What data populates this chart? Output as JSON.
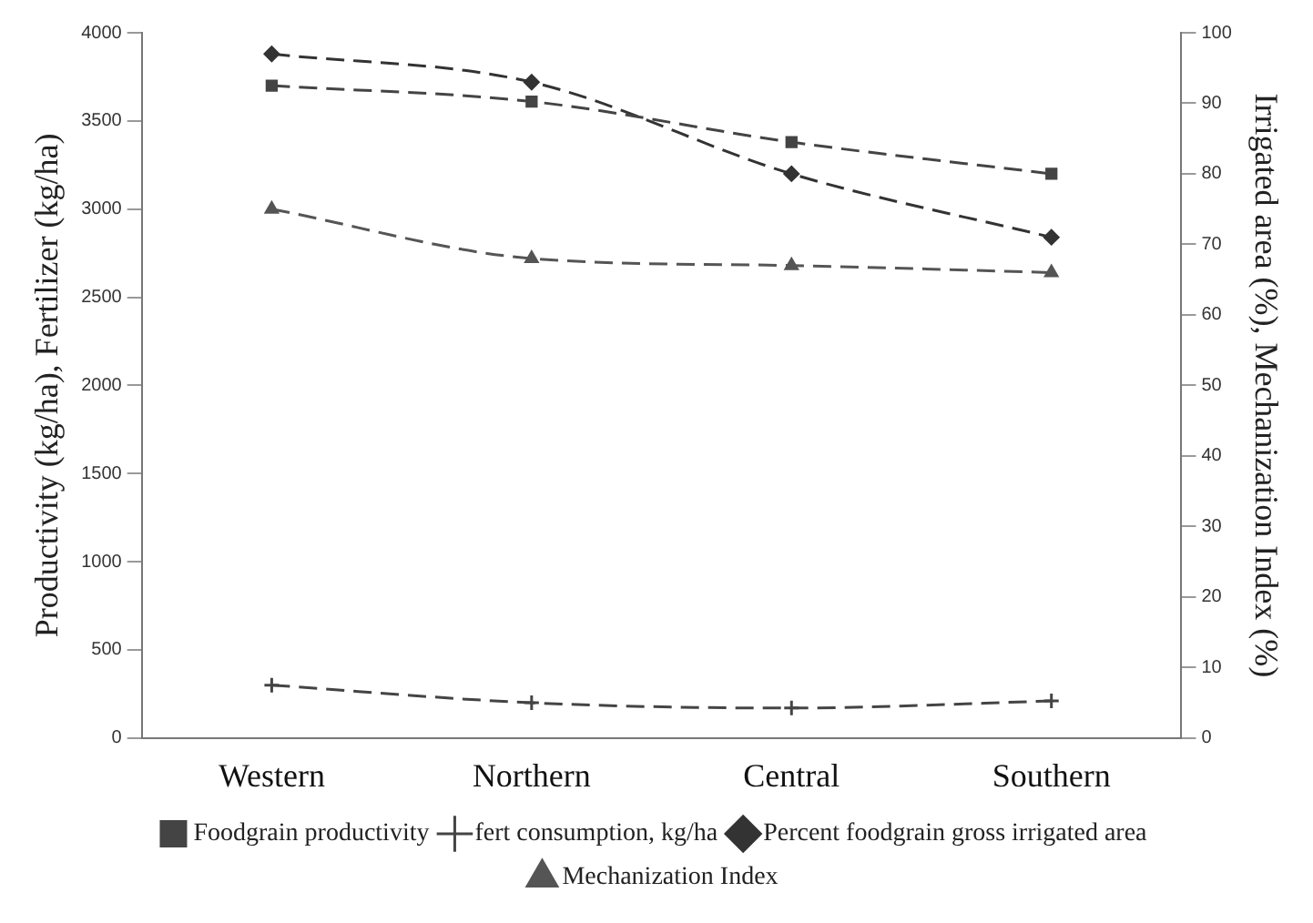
{
  "chart_data": {
    "type": "line",
    "categories": [
      "Western",
      "Northern",
      "Central",
      "Southern"
    ],
    "ylabel": "Productivity (kg/ha), Fertilizer (kg/ha)",
    "y2label": "Irrigated area (%), Mechanization Index (%)",
    "ylim": [
      0,
      4000
    ],
    "yticks": [
      0,
      500,
      1000,
      1500,
      2000,
      2500,
      3000,
      3500,
      4000
    ],
    "y2lim": [
      0,
      100
    ],
    "y2ticks": [
      0,
      10,
      20,
      30,
      40,
      50,
      60,
      70,
      80,
      90,
      100
    ],
    "grid": false,
    "legend": "bottom",
    "line_style": "dashed",
    "series": [
      {
        "name": "Foodgrain productivity",
        "color": "#444444",
        "marker": "square",
        "values": [
          3700,
          3610,
          3380,
          3200
        ]
      },
      {
        "name": "fert consumption, kg/ha",
        "color": "#444444",
        "marker": "cross",
        "values": [
          300,
          200,
          170,
          210
        ]
      },
      {
        "name": "Percent foodgrain gross irrigated area",
        "color": "#333333",
        "marker": "diamond",
        "axis": "y2",
        "values": [
          97,
          93,
          80,
          71
        ]
      },
      {
        "name": "Mechanization Index",
        "color": "#555555",
        "marker": "triangle",
        "axis": "y2",
        "values": [
          75,
          68,
          67,
          66
        ]
      }
    ]
  }
}
